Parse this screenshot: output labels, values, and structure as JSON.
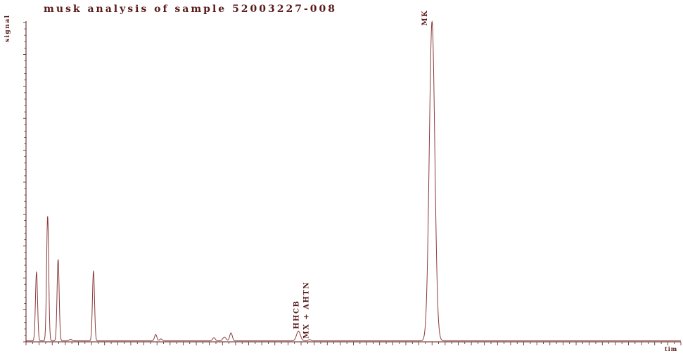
{
  "chart_data": {
    "type": "line",
    "title": "musk analysis of sample 52003227-008",
    "ylabel": "signal",
    "xlabel": "tim",
    "xlim": [
      0,
      100
    ],
    "ylim": [
      0,
      100
    ],
    "grid": false,
    "legend": "none",
    "line_color": "#8b3a3a",
    "axis_color": "#5a1a1a",
    "baseline": 0.3,
    "series": [
      {
        "peaks": [
          {
            "x": 1.6,
            "height": 21.5,
            "width": 0.16
          },
          {
            "x": 3.3,
            "height": 39.0,
            "width": 0.16
          },
          {
            "x": 4.9,
            "height": 25.5,
            "width": 0.16
          },
          {
            "x": 6.8,
            "height": 0.5,
            "width": 0.2
          },
          {
            "x": 10.3,
            "height": 21.8,
            "width": 0.16
          },
          {
            "x": 19.8,
            "height": 2.0,
            "width": 0.18
          },
          {
            "x": 20.6,
            "height": 0.6,
            "width": 0.2
          },
          {
            "x": 28.7,
            "height": 1.0,
            "width": 0.2
          },
          {
            "x": 30.3,
            "height": 1.2,
            "width": 0.25
          },
          {
            "x": 31.3,
            "height": 2.5,
            "width": 0.2
          },
          {
            "x": 41.6,
            "height": 3.0,
            "width": 0.3
          },
          {
            "x": 43.3,
            "height": 0.4,
            "width": 0.2
          },
          {
            "x": 62.0,
            "height": 100.0,
            "width": 0.42
          },
          {
            "x": 63.0,
            "height": 0.3,
            "width": 0.3
          }
        ]
      }
    ],
    "annotations": [
      {
        "text": "HHCB",
        "x": 41.6,
        "y": 4.0
      },
      {
        "text": "MX + AHTN",
        "x": 43.1,
        "y": 1.0
      },
      {
        "text": "MK",
        "x": 61.2,
        "y": 99.0
      }
    ]
  }
}
